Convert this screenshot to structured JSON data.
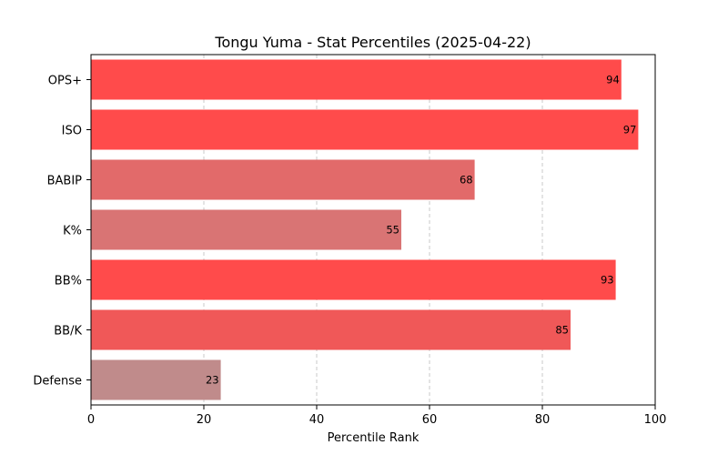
{
  "chart_data": {
    "type": "bar",
    "orientation": "horizontal",
    "title": "Tongu Yuma - Stat Percentiles (2025-04-22)",
    "xlabel": "Percentile Rank",
    "ylabel": "",
    "xlim": [
      0,
      100
    ],
    "xticks": [
      0,
      20,
      40,
      60,
      80,
      100
    ],
    "grid": "vertical dashed",
    "categories": [
      "OPS+",
      "ISO",
      "BABIP",
      "K%",
      "BB%",
      "BB/K",
      "Defense"
    ],
    "values": [
      94,
      97,
      68,
      55,
      93,
      85,
      23
    ],
    "colors": [
      "#ff4b4b",
      "#ff4b4b",
      "#e26a6a",
      "#d97474",
      "#ff4b4b",
      "#f05858",
      "#c08b8b"
    ],
    "data_labels": [
      "94",
      "97",
      "68",
      "55",
      "93",
      "85",
      "23"
    ]
  }
}
